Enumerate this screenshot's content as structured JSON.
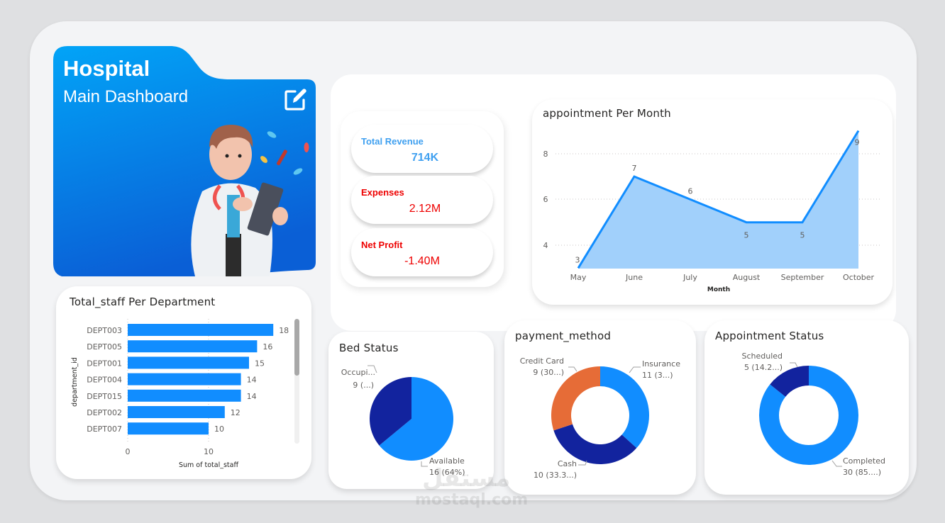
{
  "hero": {
    "title": "Hospital",
    "subtitle": "Main Dashboard",
    "edit_icon": "edit-icon",
    "gradient_top": "#02a4f7",
    "gradient_bottom": "#0a63d8"
  },
  "kpis": [
    {
      "label": "Total Revenue",
      "value": "714K",
      "color": "#3fa0f0"
    },
    {
      "label": "Expenses",
      "value": "2.12M",
      "color": "#ee0000"
    },
    {
      "label": "Net Profit",
      "value": "-1.40M",
      "color": "#ee0000"
    }
  ],
  "staff_chart": {
    "title": "Total_staff Per Department",
    "ylabel": "department_id",
    "xlabel": "Sum of total_staff",
    "xticks": [
      "0",
      "10"
    ]
  },
  "line_chart": {
    "title": "appointment Per Month",
    "xlabel": "Month",
    "yticks": [
      "4",
      "6",
      "8"
    ]
  },
  "bed_chart": {
    "title": "Bed Status",
    "labels": [
      {
        "name": "Occupi...",
        "value": "9 (...)"
      },
      {
        "name": "Available",
        "value": "16 (64%)"
      }
    ]
  },
  "payment_chart": {
    "title": "payment_method",
    "labels": [
      {
        "name": "Credit Card",
        "value": "9 (30...)"
      },
      {
        "name": "Insurance",
        "value": "11 (3...)"
      },
      {
        "name": "Cash",
        "value": "10 (33.3...)"
      }
    ]
  },
  "status_chart": {
    "title": "Appointment Status",
    "labels": [
      {
        "name": "Scheduled",
        "value": "5 (14.2...)"
      },
      {
        "name": "Completed",
        "value": "30 (85....)"
      }
    ]
  },
  "watermark": {
    "arabic": "مستقل",
    "latin": "mostaql.com"
  },
  "colors": {
    "primary": "#118dff",
    "dark": "#12239e",
    "orange": "#e66c37",
    "area_fill": "#a1d0fb"
  },
  "chart_data": [
    {
      "type": "bar",
      "title": "Total_staff Per Department",
      "orientation": "horizontal",
      "categories": [
        "DEPT003",
        "DEPT005",
        "DEPT001",
        "DEPT004",
        "DEPT015",
        "DEPT002",
        "DEPT007"
      ],
      "values": [
        18,
        16,
        15,
        14,
        14,
        12,
        10
      ],
      "xlabel": "Sum of total_staff",
      "ylabel": "department_id",
      "xticks": [
        0,
        10
      ],
      "xlim": [
        0,
        19
      ],
      "grid": true
    },
    {
      "type": "area",
      "title": "appointment Per Month",
      "categories": [
        "May",
        "June",
        "July",
        "August",
        "September",
        "October"
      ],
      "values": [
        3,
        7,
        6,
        5,
        5,
        9
      ],
      "xlabel": "Month",
      "ylabel": "",
      "yticks": [
        4,
        6,
        8
      ],
      "ylim": [
        3,
        9
      ],
      "grid": true
    },
    {
      "type": "pie",
      "title": "Bed Status",
      "categories": [
        "Available",
        "Occupied"
      ],
      "values": [
        16,
        9
      ],
      "percent": [
        64,
        36
      ]
    },
    {
      "type": "pie",
      "title": "payment_method",
      "donut": true,
      "categories": [
        "Insurance",
        "Cash",
        "Credit Card"
      ],
      "values": [
        11,
        10,
        9
      ],
      "percent": [
        36.7,
        33.3,
        30.0
      ]
    },
    {
      "type": "pie",
      "title": "Appointment Status",
      "donut": true,
      "categories": [
        "Completed",
        "Scheduled"
      ],
      "values": [
        30,
        5
      ],
      "percent": [
        85.7,
        14.3
      ]
    }
  ]
}
